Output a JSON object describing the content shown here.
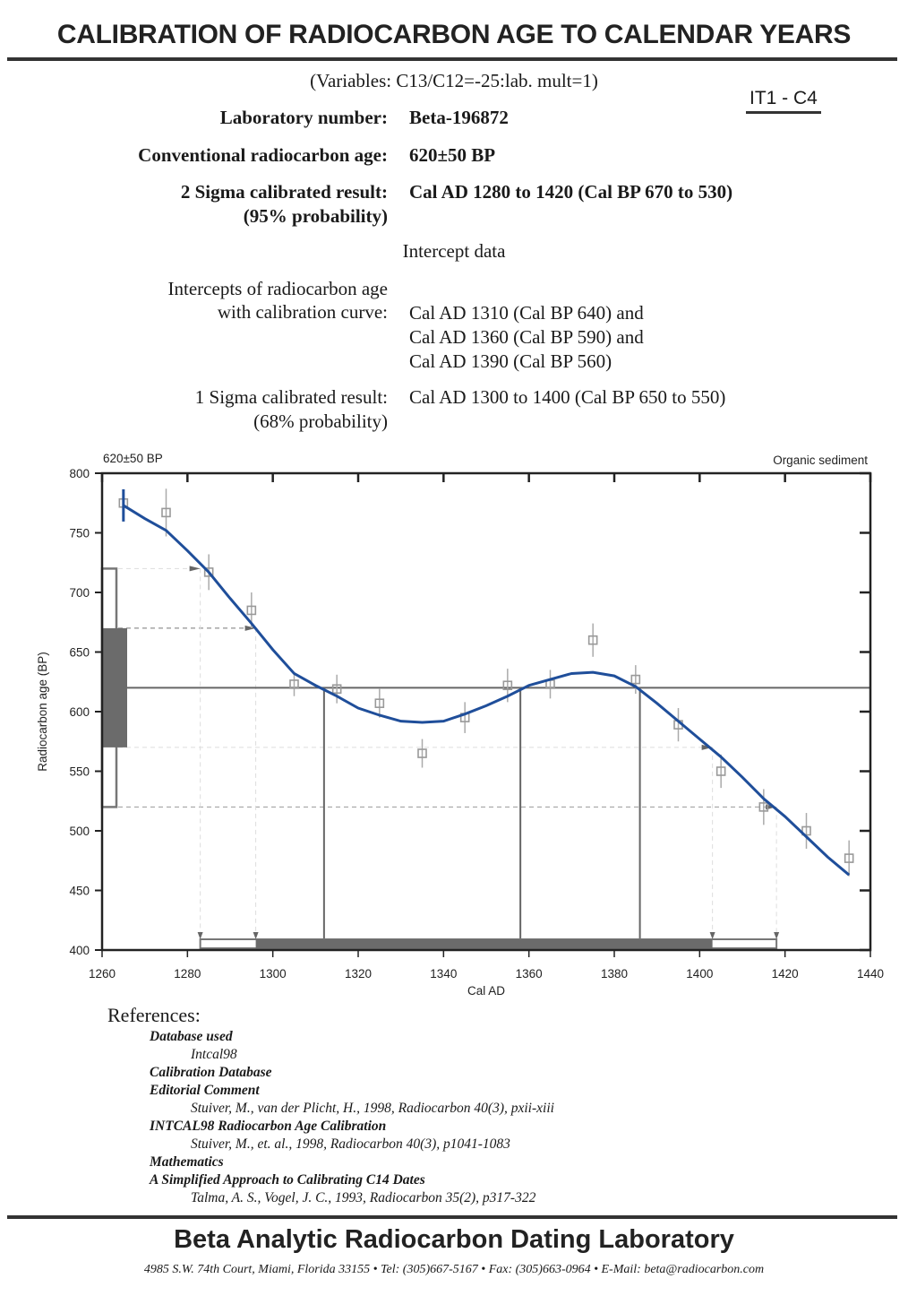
{
  "title": "CALIBRATION OF RADIOCARBON  AGE TO CALENDAR YEARS",
  "variables": "(Variables: C13/C12=-25:lab. mult=1)",
  "sample_tag": "IT1 - C4",
  "lab_number": {
    "label": "Laboratory number:",
    "value": "Beta-196872"
  },
  "conventional_age": {
    "label": "Conventional radiocarbon age:",
    "value": "620±50 BP"
  },
  "two_sigma": {
    "label": "2 Sigma calibrated result:",
    "label2": "(95% probability)",
    "value": "Cal AD 1280 to 1420 (Cal BP 670 to 530)"
  },
  "intercept_heading": "Intercept data",
  "intercepts": {
    "label": "Intercepts of radiocarbon age",
    "label2": "with calibration curve:",
    "values": [
      "Cal AD 1310 (Cal BP 640) and",
      "Cal AD 1360 (Cal BP 590) and",
      "Cal AD 1390 (Cal BP 560)"
    ]
  },
  "one_sigma": {
    "label": "1 Sigma calibrated result:",
    "label2": "(68% probability)",
    "value": "Cal AD 1300 to 1400 (Cal BP 650 to 550)"
  },
  "chart_data": {
    "type": "line",
    "title_left": "620±50 BP",
    "title_right": "Organic sediment",
    "xlabel": "Cal AD",
    "ylabel": "Radiocarbon age (BP)",
    "xlim": [
      1260,
      1440
    ],
    "ylim": [
      400,
      800
    ],
    "xticks": [
      1260,
      1280,
      1300,
      1320,
      1340,
      1360,
      1380,
      1400,
      1420,
      1440
    ],
    "yticks": [
      400,
      450,
      500,
      550,
      600,
      650,
      700,
      750,
      800
    ],
    "curve_color": "#1f4e9a",
    "calibration_curve": {
      "x": [
        1265,
        1270,
        1275,
        1280,
        1285,
        1290,
        1295,
        1300,
        1305,
        1310,
        1315,
        1320,
        1325,
        1330,
        1335,
        1340,
        1345,
        1350,
        1355,
        1360,
        1365,
        1370,
        1375,
        1380,
        1385,
        1390,
        1395,
        1400,
        1405,
        1410,
        1415,
        1420,
        1425,
        1430,
        1435
      ],
      "y": [
        773,
        762,
        752,
        735,
        717,
        695,
        674,
        652,
        632,
        622,
        613,
        603,
        597,
        592,
        591,
        592,
        598,
        605,
        613,
        622,
        627,
        632,
        633,
        630,
        621,
        607,
        592,
        577,
        562,
        545,
        527,
        512,
        495,
        478,
        463
      ]
    },
    "data_points": [
      {
        "x": 1265,
        "y": 775,
        "err": 5
      },
      {
        "x": 1275,
        "y": 767,
        "err": 20
      },
      {
        "x": 1285,
        "y": 717,
        "err": 15
      },
      {
        "x": 1295,
        "y": 685,
        "err": 15
      },
      {
        "x": 1305,
        "y": 623,
        "err": 10
      },
      {
        "x": 1315,
        "y": 619,
        "err": 12
      },
      {
        "x": 1325,
        "y": 607,
        "err": 12
      },
      {
        "x": 1335,
        "y": 565,
        "err": 12
      },
      {
        "x": 1345,
        "y": 595,
        "err": 13
      },
      {
        "x": 1355,
        "y": 622,
        "err": 14
      },
      {
        "x": 1365,
        "y": 623,
        "err": 12
      },
      {
        "x": 1375,
        "y": 660,
        "err": 14
      },
      {
        "x": 1385,
        "y": 627,
        "err": 12
      },
      {
        "x": 1395,
        "y": 589,
        "err": 14
      },
      {
        "x": 1405,
        "y": 550,
        "err": 14
      },
      {
        "x": 1415,
        "y": 520,
        "err": 15
      },
      {
        "x": 1425,
        "y": 500,
        "err": 15
      },
      {
        "x": 1435,
        "y": 477,
        "err": 15
      }
    ],
    "measured_age": 620,
    "one_sigma_age": [
      570,
      670
    ],
    "two_sigma_age": [
      520,
      720
    ],
    "intercept_years": [
      1312,
      1358,
      1386
    ],
    "one_sigma_range": [
      1296,
      1403
    ],
    "two_sigma_range": [
      1283,
      1418
    ]
  },
  "references": {
    "heading": "References:",
    "items": [
      {
        "h": "Database used",
        "v": "Intcal98"
      },
      {
        "h": "Calibration Database",
        "v": null
      },
      {
        "h": "Editorial Comment",
        "v": "Stuiver, M., van der Plicht, H., 1998, Radiocarbon 40(3), pxii-xiii"
      },
      {
        "h": "INTCAL98 Radiocarbon Age Calibration",
        "v": "Stuiver, M., et. al., 1998, Radiocarbon 40(3), p1041-1083"
      },
      {
        "h": "Mathematics",
        "v": null
      },
      {
        "h": "A Simplified Approach to Calibrating C14 Dates",
        "v": "Talma, A. S., Vogel, J. C., 1993, Radiocarbon 35(2), p317-322"
      }
    ]
  },
  "footer": {
    "lab_name": "Beta Analytic Radiocarbon Dating Laboratory",
    "address": "4985 S.W. 74th Court, Miami, Florida 33155 • Tel: (305)667-5167 • Fax: (305)663-0964 • E-Mail: beta@radiocarbon.com"
  }
}
